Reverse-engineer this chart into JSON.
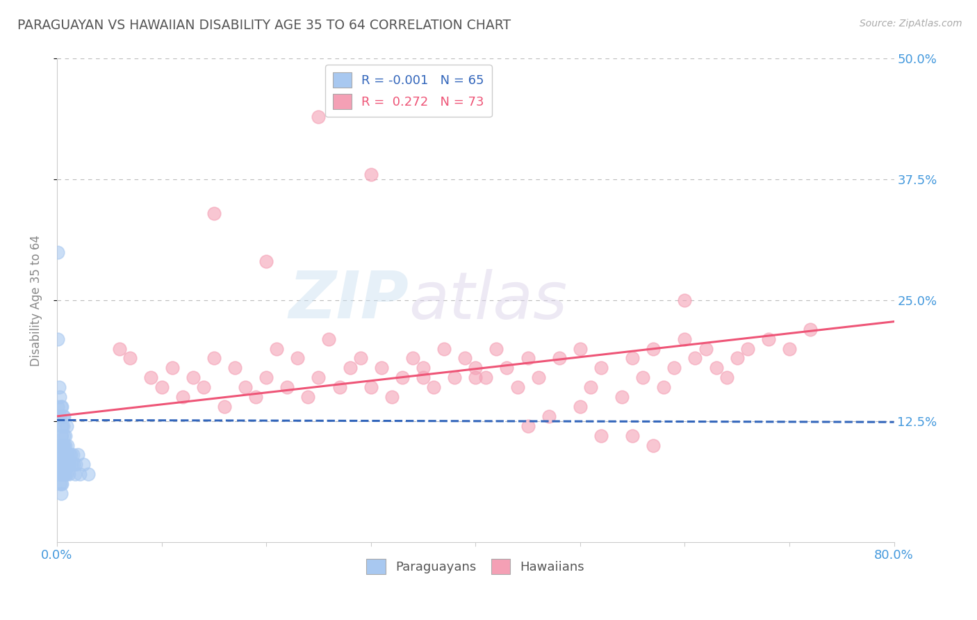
{
  "title": "PARAGUAYAN VS HAWAIIAN DISABILITY AGE 35 TO 64 CORRELATION CHART",
  "source_text": "Source: ZipAtlas.com",
  "ylabel": "Disability Age 35 to 64",
  "xlim": [
    0.0,
    0.8
  ],
  "ylim": [
    0.0,
    0.5
  ],
  "xticks": [
    0.0,
    0.1,
    0.2,
    0.3,
    0.4,
    0.5,
    0.6,
    0.7,
    0.8
  ],
  "xticklabels": [
    "0.0%",
    "",
    "",
    "",
    "",
    "",
    "",
    "",
    "80.0%"
  ],
  "ytick_positions": [
    0.125,
    0.25,
    0.375,
    0.5
  ],
  "ytick_labels": [
    "12.5%",
    "25.0%",
    "37.5%",
    "50.0%"
  ],
  "paraguayan_color": "#a8c8f0",
  "hawaiian_color": "#f4a0b5",
  "paraguayan_line_color": "#3366bb",
  "hawaiian_line_color": "#ee5577",
  "grid_color": "#bbbbbb",
  "background_color": "#ffffff",
  "title_color": "#555555",
  "axis_label_color": "#888888",
  "tick_label_color": "#4499dd",
  "legend_R1": "-0.001",
  "legend_N1": "65",
  "legend_R2": "0.272",
  "legend_N2": "73",
  "watermark_zip": "ZIP",
  "watermark_atlas": "atlas",
  "paraguayan_x": [
    0.001,
    0.001,
    0.002,
    0.002,
    0.002,
    0.003,
    0.003,
    0.003,
    0.003,
    0.004,
    0.004,
    0.004,
    0.004,
    0.004,
    0.005,
    0.005,
    0.005,
    0.005,
    0.005,
    0.005,
    0.005,
    0.006,
    0.006,
    0.006,
    0.006,
    0.007,
    0.007,
    0.007,
    0.007,
    0.008,
    0.008,
    0.008,
    0.008,
    0.009,
    0.009,
    0.009,
    0.01,
    0.01,
    0.011,
    0.011,
    0.012,
    0.012,
    0.013,
    0.014,
    0.015,
    0.016,
    0.017,
    0.018,
    0.02,
    0.022,
    0.001,
    0.002,
    0.003,
    0.003,
    0.004,
    0.004,
    0.005,
    0.005,
    0.006,
    0.006,
    0.007,
    0.008,
    0.009,
    0.025,
    0.03
  ],
  "paraguayan_y": [
    0.3,
    0.21,
    0.1,
    0.08,
    0.07,
    0.09,
    0.08,
    0.07,
    0.06,
    0.09,
    0.08,
    0.07,
    0.06,
    0.05,
    0.12,
    0.11,
    0.1,
    0.09,
    0.08,
    0.07,
    0.06,
    0.1,
    0.09,
    0.08,
    0.07,
    0.11,
    0.1,
    0.08,
    0.07,
    0.1,
    0.09,
    0.08,
    0.07,
    0.09,
    0.08,
    0.07,
    0.1,
    0.09,
    0.08,
    0.07,
    0.09,
    0.08,
    0.09,
    0.08,
    0.09,
    0.08,
    0.07,
    0.08,
    0.09,
    0.07,
    0.14,
    0.16,
    0.13,
    0.15,
    0.14,
    0.11,
    0.14,
    0.12,
    0.13,
    0.12,
    0.13,
    0.11,
    0.12,
    0.08,
    0.07
  ],
  "hawaiian_x": [
    0.06,
    0.07,
    0.09,
    0.1,
    0.11,
    0.12,
    0.13,
    0.14,
    0.15,
    0.16,
    0.17,
    0.18,
    0.19,
    0.2,
    0.21,
    0.22,
    0.23,
    0.24,
    0.25,
    0.26,
    0.27,
    0.28,
    0.29,
    0.3,
    0.31,
    0.32,
    0.33,
    0.34,
    0.35,
    0.36,
    0.37,
    0.38,
    0.39,
    0.4,
    0.41,
    0.42,
    0.43,
    0.44,
    0.45,
    0.46,
    0.48,
    0.5,
    0.51,
    0.52,
    0.54,
    0.55,
    0.56,
    0.57,
    0.58,
    0.59,
    0.6,
    0.61,
    0.62,
    0.63,
    0.64,
    0.65,
    0.66,
    0.68,
    0.7,
    0.72,
    0.25,
    0.3,
    0.15,
    0.2,
    0.35,
    0.4,
    0.45,
    0.5,
    0.55,
    0.6,
    0.47,
    0.52,
    0.57
  ],
  "hawaiian_y": [
    0.2,
    0.19,
    0.17,
    0.16,
    0.18,
    0.15,
    0.17,
    0.16,
    0.19,
    0.14,
    0.18,
    0.16,
    0.15,
    0.17,
    0.2,
    0.16,
    0.19,
    0.15,
    0.17,
    0.21,
    0.16,
    0.18,
    0.19,
    0.16,
    0.18,
    0.15,
    0.17,
    0.19,
    0.18,
    0.16,
    0.2,
    0.17,
    0.19,
    0.18,
    0.17,
    0.2,
    0.18,
    0.16,
    0.19,
    0.17,
    0.19,
    0.2,
    0.16,
    0.18,
    0.15,
    0.19,
    0.17,
    0.2,
    0.16,
    0.18,
    0.21,
    0.19,
    0.2,
    0.18,
    0.17,
    0.19,
    0.2,
    0.21,
    0.2,
    0.22,
    0.44,
    0.38,
    0.34,
    0.29,
    0.17,
    0.17,
    0.12,
    0.14,
    0.11,
    0.25,
    0.13,
    0.11,
    0.1
  ],
  "par_trend_x": [
    0.0,
    0.8
  ],
  "par_trend_y": [
    0.126,
    0.124
  ],
  "haw_trend_x": [
    0.0,
    0.8
  ],
  "haw_trend_y": [
    0.13,
    0.228
  ]
}
